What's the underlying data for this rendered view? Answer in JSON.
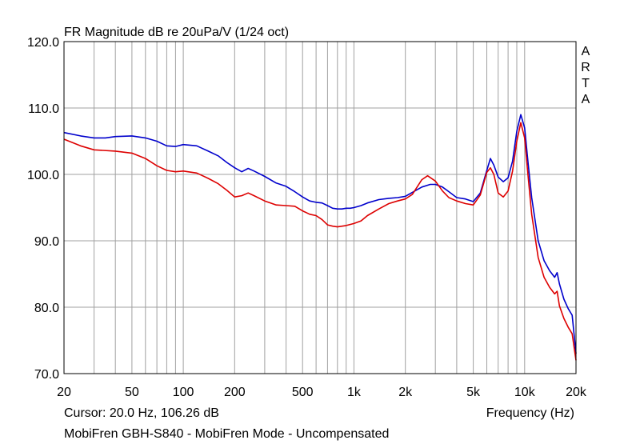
{
  "chart_data": {
    "type": "line",
    "title": "FR Magnitude dB re 20uPa/V (1/24 oct)",
    "brand": [
      "A",
      "R",
      "T",
      "A"
    ],
    "xlabel": "Frequency (Hz)",
    "x_scale": "log",
    "xlim": [
      20,
      20000
    ],
    "ylim": [
      70,
      120
    ],
    "grid": true,
    "x_ticks": [
      {
        "value": 20,
        "label": "20"
      },
      {
        "value": 50,
        "label": "50"
      },
      {
        "value": 100,
        "label": "100"
      },
      {
        "value": 200,
        "label": "200"
      },
      {
        "value": 500,
        "label": "500"
      },
      {
        "value": 1000,
        "label": "1k"
      },
      {
        "value": 2000,
        "label": "2k"
      },
      {
        "value": 5000,
        "label": "5k"
      },
      {
        "value": 10000,
        "label": "10k"
      },
      {
        "value": 20000,
        "label": "20k"
      }
    ],
    "y_ticks": [
      {
        "value": 70,
        "label": "70.0"
      },
      {
        "value": 80,
        "label": "80.0"
      },
      {
        "value": 90,
        "label": "90.0"
      },
      {
        "value": 100,
        "label": "100.0"
      },
      {
        "value": 110,
        "label": "110.0"
      },
      {
        "value": 120,
        "label": "120.0"
      }
    ],
    "cursor_text": "Cursor: 20.0 Hz, 106.26 dB",
    "caption": "MobiFren GBH-S840 - MobiFren Mode - Uncompensated",
    "colors": {
      "blue": "#0000cc",
      "red": "#dd0000",
      "grid": "#a0a0a0",
      "frame": "#000000"
    },
    "series": [
      {
        "color": "#0000cc",
        "points": [
          [
            20,
            106.3
          ],
          [
            25,
            105.8
          ],
          [
            30,
            105.5
          ],
          [
            35,
            105.5
          ],
          [
            40,
            105.7
          ],
          [
            50,
            105.8
          ],
          [
            60,
            105.5
          ],
          [
            70,
            105.0
          ],
          [
            80,
            104.3
          ],
          [
            90,
            104.2
          ],
          [
            100,
            104.5
          ],
          [
            120,
            104.3
          ],
          [
            140,
            103.5
          ],
          [
            160,
            102.8
          ],
          [
            180,
            101.8
          ],
          [
            200,
            101.0
          ],
          [
            220,
            100.4
          ],
          [
            240,
            100.9
          ],
          [
            260,
            100.5
          ],
          [
            300,
            99.7
          ],
          [
            350,
            98.7
          ],
          [
            400,
            98.2
          ],
          [
            450,
            97.4
          ],
          [
            500,
            96.6
          ],
          [
            550,
            96.0
          ],
          [
            600,
            95.8
          ],
          [
            650,
            95.7
          ],
          [
            700,
            95.3
          ],
          [
            750,
            94.9
          ],
          [
            800,
            94.8
          ],
          [
            850,
            94.8
          ],
          [
            900,
            94.9
          ],
          [
            950,
            94.9
          ],
          [
            1000,
            95.0
          ],
          [
            1100,
            95.3
          ],
          [
            1200,
            95.7
          ],
          [
            1400,
            96.2
          ],
          [
            1600,
            96.4
          ],
          [
            1800,
            96.5
          ],
          [
            2000,
            96.7
          ],
          [
            2200,
            97.3
          ],
          [
            2500,
            98.1
          ],
          [
            2800,
            98.5
          ],
          [
            3000,
            98.5
          ],
          [
            3300,
            98.1
          ],
          [
            3600,
            97.4
          ],
          [
            4000,
            96.5
          ],
          [
            4500,
            96.3
          ],
          [
            5000,
            95.9
          ],
          [
            5500,
            97.2
          ],
          [
            6000,
            100.6
          ],
          [
            6300,
            102.4
          ],
          [
            6600,
            101.4
          ],
          [
            7000,
            99.6
          ],
          [
            7500,
            98.9
          ],
          [
            8000,
            99.5
          ],
          [
            8500,
            102.0
          ],
          [
            9000,
            106.5
          ],
          [
            9500,
            109.0
          ],
          [
            10000,
            107.0
          ],
          [
            10500,
            101.5
          ],
          [
            11000,
            96.5
          ],
          [
            12000,
            90.0
          ],
          [
            13000,
            87.0
          ],
          [
            14000,
            85.5
          ],
          [
            15000,
            84.5
          ],
          [
            15500,
            85.2
          ],
          [
            16000,
            83.5
          ],
          [
            17000,
            81.2
          ],
          [
            18000,
            79.8
          ],
          [
            19000,
            78.8
          ],
          [
            20000,
            73.0
          ]
        ]
      },
      {
        "color": "#dd0000",
        "points": [
          [
            20,
            105.3
          ],
          [
            25,
            104.3
          ],
          [
            30,
            103.7
          ],
          [
            40,
            103.5
          ],
          [
            50,
            103.2
          ],
          [
            60,
            102.4
          ],
          [
            70,
            101.3
          ],
          [
            80,
            100.6
          ],
          [
            90,
            100.4
          ],
          [
            100,
            100.5
          ],
          [
            120,
            100.2
          ],
          [
            140,
            99.4
          ],
          [
            160,
            98.6
          ],
          [
            180,
            97.6
          ],
          [
            200,
            96.6
          ],
          [
            220,
            96.8
          ],
          [
            240,
            97.2
          ],
          [
            260,
            96.8
          ],
          [
            300,
            96.0
          ],
          [
            350,
            95.4
          ],
          [
            400,
            95.3
          ],
          [
            450,
            95.2
          ],
          [
            500,
            94.5
          ],
          [
            550,
            94.0
          ],
          [
            600,
            93.8
          ],
          [
            650,
            93.2
          ],
          [
            700,
            92.4
          ],
          [
            750,
            92.2
          ],
          [
            800,
            92.1
          ],
          [
            900,
            92.3
          ],
          [
            1000,
            92.6
          ],
          [
            1100,
            93.0
          ],
          [
            1200,
            93.8
          ],
          [
            1400,
            94.8
          ],
          [
            1600,
            95.6
          ],
          [
            1800,
            96.0
          ],
          [
            2000,
            96.3
          ],
          [
            2200,
            97.0
          ],
          [
            2500,
            99.2
          ],
          [
            2700,
            99.8
          ],
          [
            3000,
            99.0
          ],
          [
            3300,
            97.5
          ],
          [
            3600,
            96.5
          ],
          [
            4000,
            96.0
          ],
          [
            4500,
            95.6
          ],
          [
            5000,
            95.4
          ],
          [
            5500,
            96.9
          ],
          [
            6000,
            100.3
          ],
          [
            6300,
            101.0
          ],
          [
            6600,
            100.0
          ],
          [
            7000,
            97.2
          ],
          [
            7500,
            96.6
          ],
          [
            8000,
            97.5
          ],
          [
            8500,
            100.5
          ],
          [
            9000,
            105.0
          ],
          [
            9500,
            107.8
          ],
          [
            10000,
            105.5
          ],
          [
            10500,
            99.5
          ],
          [
            11000,
            94.0
          ],
          [
            12000,
            87.5
          ],
          [
            13000,
            84.5
          ],
          [
            14000,
            83.0
          ],
          [
            15000,
            82.0
          ],
          [
            15500,
            82.4
          ],
          [
            16000,
            80.2
          ],
          [
            17000,
            78.3
          ],
          [
            18000,
            77.0
          ],
          [
            19000,
            76.0
          ],
          [
            20000,
            72.0
          ]
        ]
      }
    ]
  }
}
